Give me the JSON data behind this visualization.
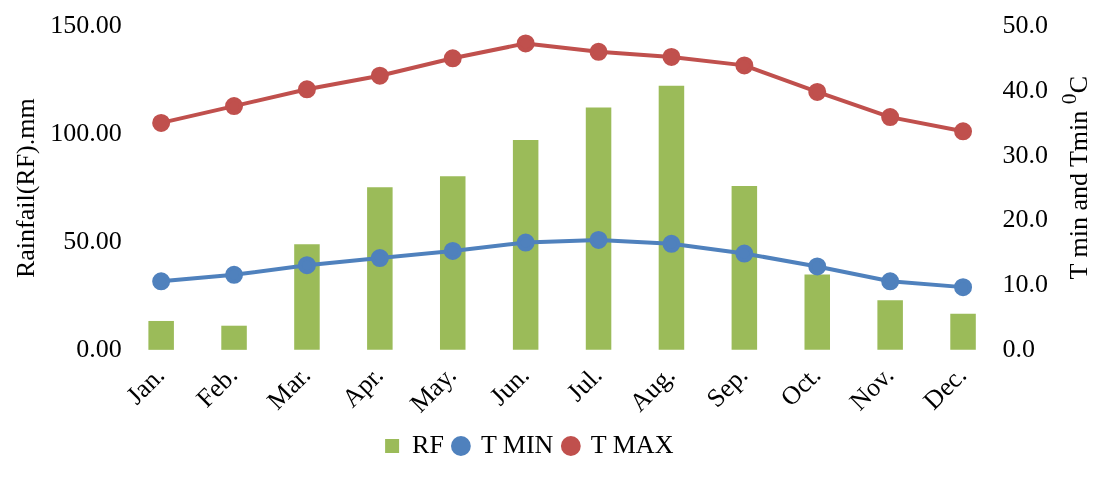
{
  "chart_data": {
    "type": "bar",
    "categories": [
      "Jan.",
      "Feb.",
      "Mar.",
      "Apr.",
      "May.",
      "Jun.",
      "Jul.",
      "Aug.",
      "Sep.",
      "Oct.",
      "Nov.",
      "Dec."
    ],
    "series": [
      {
        "name": "RF",
        "color": "#9bbb59",
        "values": [
          13.4,
          11.2,
          49,
          75.5,
          80.6,
          97.4,
          112.5,
          122.5,
          76,
          35,
          23,
          16.8
        ]
      },
      {
        "name": "T MIN",
        "type": "line",
        "axis": "y2",
        "color": "#4f81bd",
        "values": [
          10.6,
          11.6,
          13.1,
          14.2,
          15.3,
          16.6,
          17.0,
          16.4,
          14.9,
          12.9,
          10.6,
          9.7
        ]
      },
      {
        "name": "T MAX",
        "type": "line",
        "axis": "y2",
        "color": "#c0504d",
        "values": [
          35.1,
          37.7,
          40.3,
          42.4,
          45.1,
          47.4,
          46.1,
          45.3,
          44.0,
          39.9,
          36.0,
          33.8
        ]
      }
    ],
    "ylabel": "Rainfail(RF).mm",
    "y2label": "T min and Tmin $^{0}$C",
    "ylim": [
      0,
      150
    ],
    "yticks": [
      {
        "value": 0,
        "label": "0.00"
      },
      {
        "value": 50,
        "label": "50.00"
      },
      {
        "value": 100,
        "label": "100.00"
      },
      {
        "value": 150,
        "label": "150.00"
      }
    ],
    "y2lim": [
      0,
      50
    ],
    "y2ticks": [
      {
        "value": 0,
        "label": "0.0"
      },
      {
        "value": 10,
        "label": "10.0"
      },
      {
        "value": 20,
        "label": "20.0"
      },
      {
        "value": 30,
        "label": "30.0"
      },
      {
        "value": 40,
        "label": "40.0"
      },
      {
        "value": 50,
        "label": "50.0"
      }
    ],
    "grid": false,
    "legend": "bottom",
    "marker": "circle",
    "line_style": "solid"
  }
}
